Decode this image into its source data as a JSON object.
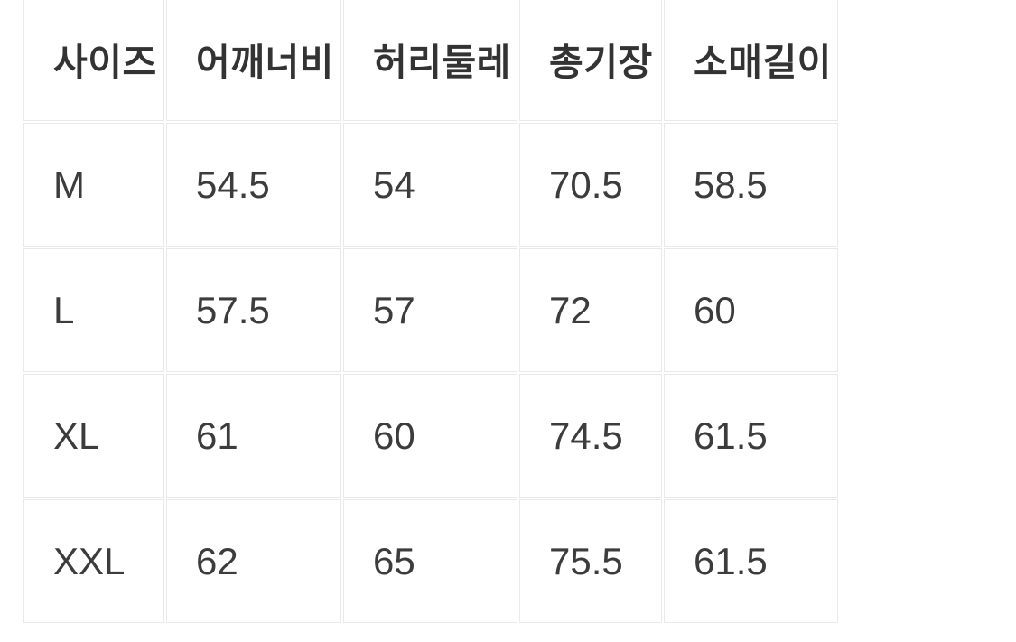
{
  "chart_data": {
    "type": "table",
    "columns": [
      "사이즈",
      "어깨너비",
      "허리둘레",
      "총기장",
      "소매길이"
    ],
    "rows": [
      {
        "size": "M",
        "shoulder": "54.5",
        "waist": "54",
        "length": "70.5",
        "sleeve": "58.5"
      },
      {
        "size": "L",
        "shoulder": "57.5",
        "waist": "57",
        "length": "72",
        "sleeve": "60"
      },
      {
        "size": "XL",
        "shoulder": "61",
        "waist": "60",
        "length": "74.5",
        "sleeve": "61.5"
      },
      {
        "size": "XXL",
        "shoulder": "62",
        "waist": "65",
        "length": "75.5",
        "sleeve": "61.5"
      }
    ]
  },
  "colors": {
    "background": "#ffffff",
    "cell_background": "#ffffff",
    "border": "#e9e9e9",
    "header_text": "#333333",
    "cell_text": "#3c3c3c"
  }
}
